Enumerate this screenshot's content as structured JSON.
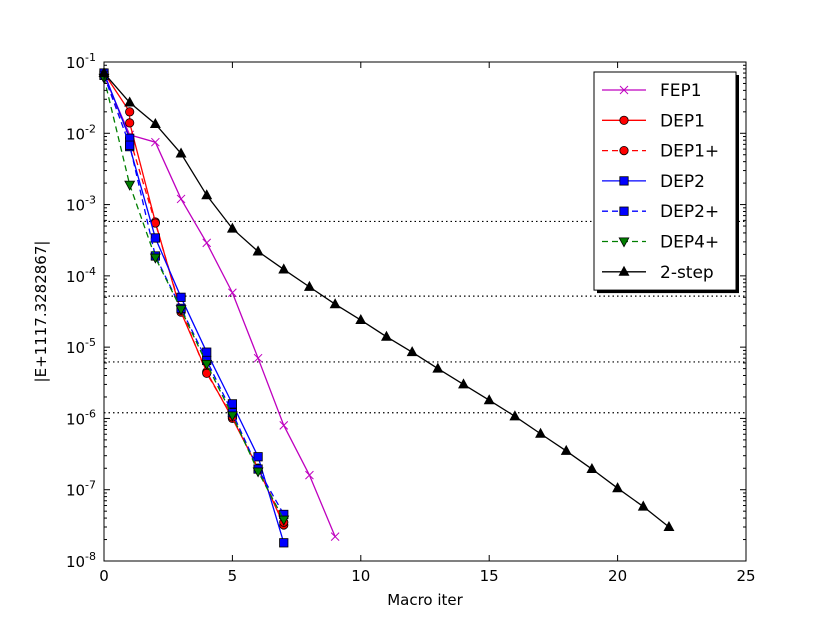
{
  "chart_data": {
    "type": "line",
    "title": "",
    "xlabel": "Macro iter",
    "ylabel": "|E+1117.3282867|",
    "xlim": [
      0,
      25
    ],
    "ylim_log10": [
      -8,
      -1
    ],
    "xticks": [
      0,
      5,
      10,
      15,
      20,
      25
    ],
    "xtick_labels": [
      "0",
      "5",
      "10",
      "15",
      "20",
      "25"
    ],
    "yticks_log10": [
      -1,
      -2,
      -3,
      -4,
      -5,
      -6,
      -7,
      -8
    ],
    "ytick_base": "10",
    "ytick_exponents": [
      "-1",
      "-2",
      "-3",
      "-4",
      "-5",
      "-6",
      "-7",
      "-8"
    ],
    "legend_position": "top-right",
    "reference_lines_y": [
      0.00058,
      5.2e-05,
      6.2e-06,
      1.2e-06
    ],
    "series": [
      {
        "name": "FEP1",
        "color": "#bf00bf",
        "dash": "solid",
        "marker": "x",
        "x": [
          0,
          1,
          2,
          3,
          4,
          5,
          6,
          7,
          8,
          9
        ],
        "y": [
          0.065,
          0.0095,
          0.0075,
          0.0012,
          0.00029,
          5.8e-05,
          7e-06,
          8e-07,
          1.6e-07,
          2.2e-08
        ]
      },
      {
        "name": "DEP1",
        "color": "#ff0000",
        "dash": "solid",
        "marker": "circle",
        "x": [
          0,
          1,
          1,
          2,
          3,
          4,
          5,
          6,
          7
        ],
        "y": [
          0.07,
          0.02,
          0.014,
          0.00057,
          3.1e-05,
          4.5e-06,
          1e-06,
          2e-07,
          3.2e-08
        ]
      },
      {
        "name": "DEP1+",
        "color": "#ff0000",
        "dash": "dashed",
        "marker": "circle",
        "x": [
          0,
          1,
          2,
          3,
          4,
          5,
          6,
          7
        ],
        "y": [
          0.065,
          0.0085,
          0.00055,
          3.3e-05,
          4.3e-06,
          1.05e-06,
          2e-07,
          3.5e-08
        ]
      },
      {
        "name": "DEP2",
        "color": "#0000ff",
        "dash": "solid",
        "marker": "square",
        "x": [
          0,
          1,
          1,
          2,
          3,
          4,
          5,
          6,
          7
        ],
        "y": [
          0.07,
          0.0085,
          0.0065,
          0.00034,
          5e-05,
          8.5e-06,
          1.6e-06,
          2.9e-07,
          1.8e-08
        ]
      },
      {
        "name": "DEP2+",
        "color": "#0000ff",
        "dash": "dashed",
        "marker": "square",
        "x": [
          0,
          1,
          2,
          3,
          4,
          5,
          6,
          7
        ],
        "y": [
          0.065,
          0.0068,
          0.00019,
          3.5e-05,
          6.5e-06,
          1.2e-06,
          1.95e-07,
          4.5e-08
        ]
      },
      {
        "name": "DEP4+",
        "color": "#007f00",
        "dash": "dashed",
        "marker": "triangle-down",
        "x": [
          0,
          1,
          2,
          3,
          4,
          5,
          6,
          7
        ],
        "y": [
          0.06,
          0.0019,
          0.00018,
          3.4e-05,
          5.8e-06,
          1.1e-06,
          1.8e-07,
          3.8e-08
        ]
      },
      {
        "name": "2-step",
        "color": "#000000",
        "dash": "solid",
        "marker": "triangle-up",
        "x": [
          0,
          1,
          2,
          3,
          4,
          5,
          6,
          7,
          8,
          9,
          10,
          11,
          12,
          13,
          14,
          15,
          16,
          17,
          18,
          19,
          20,
          21,
          22
        ],
        "y": [
          0.07,
          0.027,
          0.0135,
          0.0052,
          0.00135,
          0.00046,
          0.00022,
          0.000123,
          7e-05,
          4e-05,
          2.4e-05,
          1.4e-05,
          8.5e-06,
          5e-06,
          3e-06,
          1.8e-06,
          1.07e-06,
          6.1e-07,
          3.5e-07,
          1.95e-07,
          1.05e-07,
          5.8e-08,
          3e-08
        ]
      }
    ]
  }
}
